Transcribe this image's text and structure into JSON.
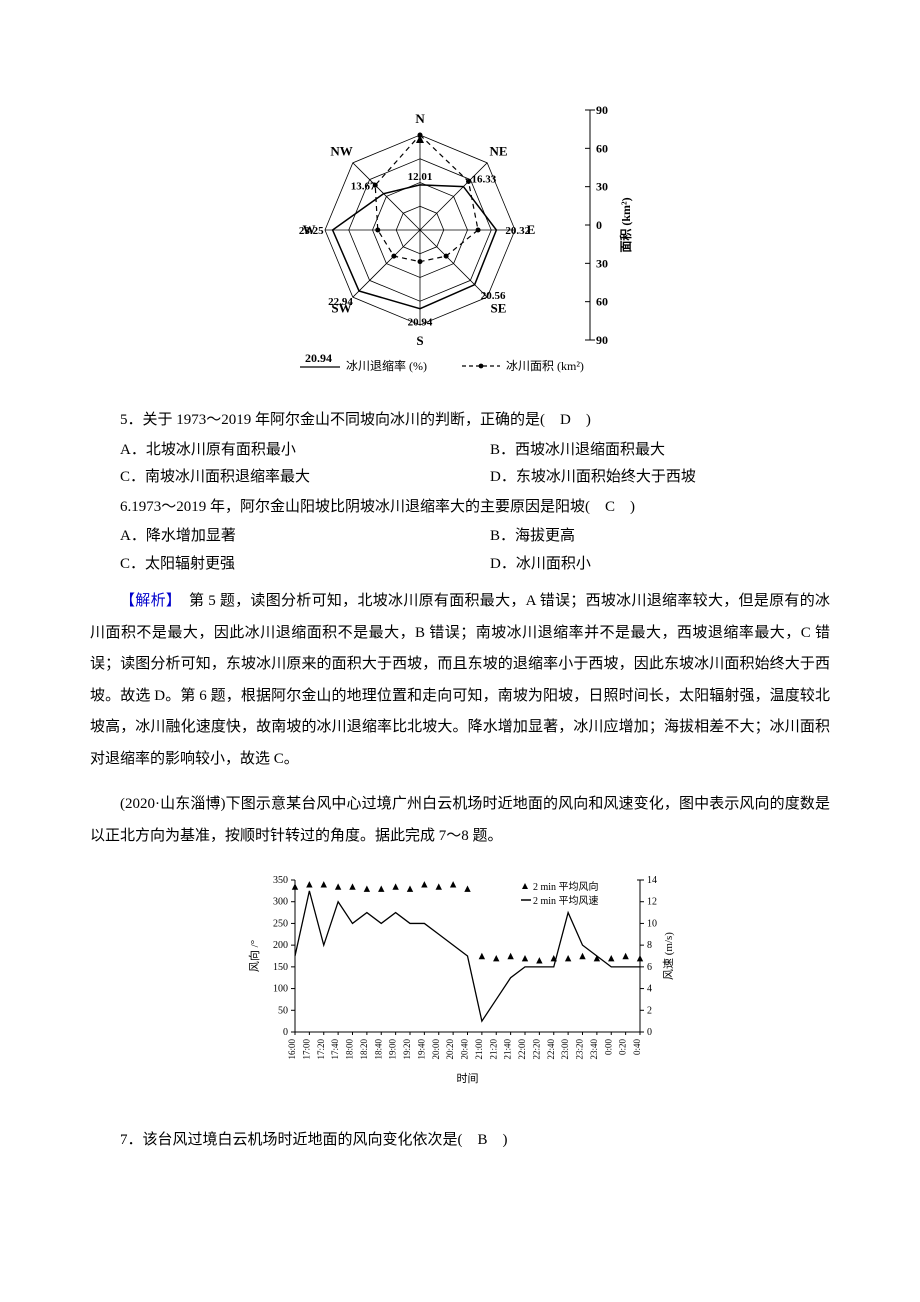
{
  "chart1": {
    "type": "radar",
    "directions": [
      "N",
      "NE",
      "E",
      "SE",
      "S",
      "SW",
      "W",
      "NW"
    ],
    "retreat_rates": [
      12.01,
      16.33,
      20.32,
      20.56,
      20.94,
      22.94,
      23.25,
      13.67
    ],
    "areas_km2": [
      90,
      65,
      55,
      35,
      30,
      35,
      40,
      60
    ],
    "axis_ticks": [
      -90,
      -60,
      -30,
      0,
      30,
      60,
      90
    ],
    "axis_label": "面积 (km²)",
    "legend_rate_value": "20.94",
    "legend_rate": "冰川退缩率 (%)",
    "legend_area": "冰川面积 (km²)",
    "line_color": "#000000",
    "dot_color": "#000000",
    "grid_color": "#000000",
    "bg": "#ffffff",
    "font_size": 11
  },
  "q5": {
    "stem": "5．关于 1973～2019 年阿尔金山不同坡向冰川的判断，正确的是(　D　)",
    "A": "A．北坡冰川原有面积最小",
    "B": "B．西坡冰川退缩面积最大",
    "C": "C．南坡冰川面积退缩率最大",
    "D": "D．东坡冰川面积始终大于西坡"
  },
  "q6": {
    "stem": "6.1973～2019 年，阿尔金山阳坡比阴坡冰川退缩率大的主要原因是阳坡(　C　)",
    "A": "A．降水增加显著",
    "B": "B．海拔更高",
    "C": "C．太阳辐射更强",
    "D": "D．冰川面积小"
  },
  "explain1": {
    "title": "【解析】",
    "body": "　第 5 题，读图分析可知，北坡冰川原有面积最大，A 错误；西坡冰川退缩率较大，但是原有的冰川面积不是最大，因此冰川退缩面积不是最大，B 错误；南坡冰川退缩率并不是最大，西坡退缩率最大，C 错误；读图分析可知，东坡冰川原来的面积大于西坡，而且东坡的退缩率小于西坡，因此东坡冰川面积始终大于西坡。故选 D。第 6 题，根据阿尔金山的地理位置和走向可知，南坡为阳坡，日照时间长，太阳辐射强，温度较北坡高，冰川融化速度快，故南坡的冰川退缩率比北坡大。降水增加显著，冰川应增加；海拔相差不大；冰川面积对退缩率的影响较小，故选 C。"
  },
  "passage2": "(2020·山东淄博)下图示意某台风中心过境广州白云机场时近地面的风向和风速变化，图中表示风向的度数是以正北方向为基准，按顺时针转过的角度。据此完成 7～8 题。",
  "chart2": {
    "type": "combo-scatter-line",
    "x_labels": [
      "16:00",
      "17:00",
      "17:20",
      "17:40",
      "18:00",
      "18:20",
      "18:40",
      "19:00",
      "19:20",
      "19:40",
      "20:00",
      "20:20",
      "20:40",
      "21:00",
      "21:20",
      "21:40",
      "22:00",
      "22:20",
      "22:40",
      "23:00",
      "23:20",
      "23:40",
      "0:00",
      "0:20",
      "0:40"
    ],
    "left_axis": {
      "label": "风向 /°",
      "min": 0,
      "max": 350,
      "step": 50,
      "color": "#000000"
    },
    "right_axis": {
      "label": "风速 (m/s)",
      "min": 0,
      "max": 14,
      "step": 2,
      "color": "#000000"
    },
    "series_dir": {
      "name": "2 min 平均风向",
      "marker": "triangle",
      "color": "#000000",
      "values": [
        335,
        340,
        340,
        335,
        335,
        330,
        330,
        335,
        330,
        340,
        335,
        340,
        330,
        175,
        170,
        175,
        170,
        165,
        170,
        170,
        175,
        170,
        170,
        175,
        170
      ]
    },
    "series_speed": {
      "name": "2 min 平均风速",
      "style": "line",
      "color": "#000000",
      "values": [
        7,
        13,
        8,
        12,
        10,
        11,
        10,
        11,
        10,
        10,
        9,
        8,
        7,
        1,
        3,
        5,
        6,
        6,
        6,
        11,
        8,
        7,
        6,
        6,
        6
      ]
    },
    "x_axis_label": "时间",
    "bg": "#ffffff",
    "font_size": 10
  },
  "q7": {
    "stem": "7．该台风过境白云机场时近地面的风向变化依次是(　B　)"
  }
}
